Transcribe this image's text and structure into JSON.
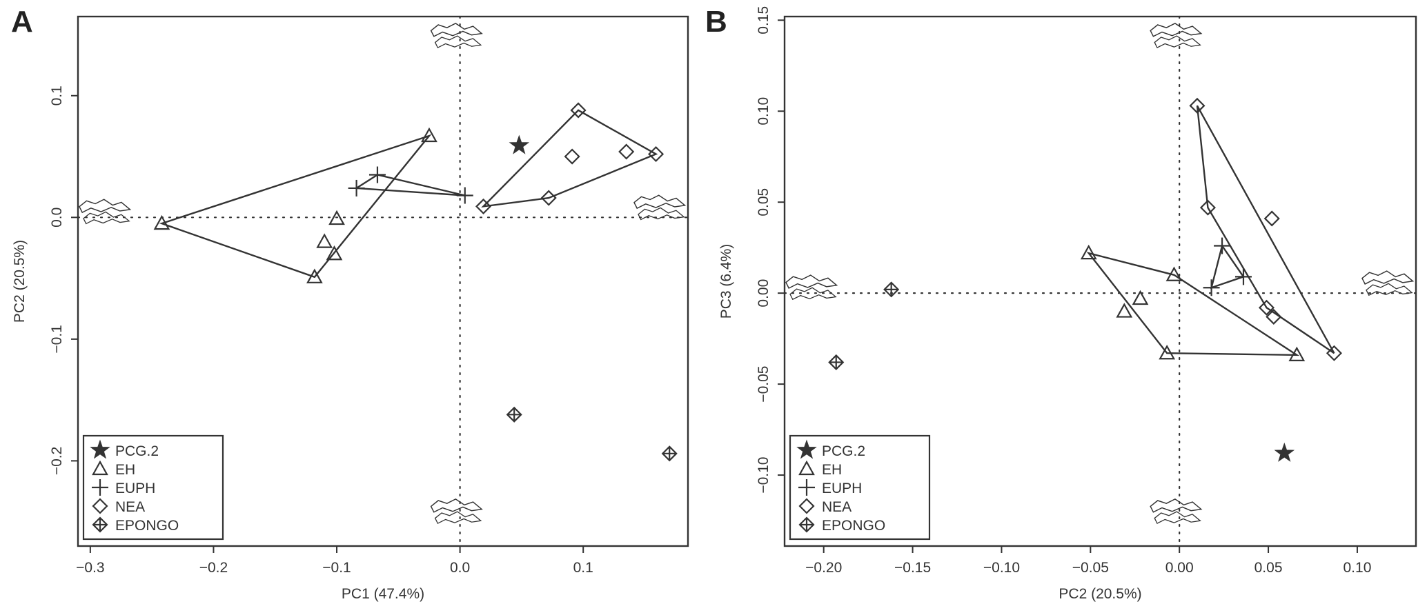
{
  "chart_data": [
    {
      "panel": "A",
      "type": "scatter",
      "xlabel": "PC1 (47.4%)",
      "ylabel": "PC2 (20.5%)",
      "xlim": [
        -0.31,
        0.185
      ],
      "ylim": [
        -0.27,
        0.165
      ],
      "xticks": [
        -0.3,
        -0.2,
        -0.1,
        0.0,
        0.1
      ],
      "yticks": [
        -0.2,
        -0.1,
        0.0,
        0.1
      ],
      "xtick_labels": [
        "−0.3",
        "−0.2",
        "−0.1",
        "0.0",
        "0.1"
      ],
      "ytick_labels": [
        "−0.2",
        "−0.1",
        "0.0",
        "0.1"
      ],
      "reference_lines": {
        "x": 0,
        "y": 0,
        "style": "dotted"
      },
      "legend_position": "bottom-left",
      "series": [
        {
          "name": "PCG.2",
          "marker": "star",
          "points": [
            [
              0.048,
              0.059
            ]
          ]
        },
        {
          "name": "EH",
          "marker": "triangle",
          "points": [
            [
              -0.242,
              -0.005
            ],
            [
              -0.025,
              0.067
            ],
            [
              -0.1,
              -0.001
            ],
            [
              -0.11,
              -0.02
            ],
            [
              -0.102,
              -0.03
            ],
            [
              -0.118,
              -0.049
            ]
          ],
          "hull": [
            [
              -0.242,
              -0.005
            ],
            [
              -0.025,
              0.067
            ],
            [
              -0.118,
              -0.049
            ]
          ]
        },
        {
          "name": "EUPH",
          "marker": "plus",
          "points": [
            [
              -0.084,
              0.024
            ],
            [
              -0.067,
              0.035
            ],
            [
              0.004,
              0.018
            ]
          ],
          "hull": [
            [
              -0.084,
              0.024
            ],
            [
              -0.067,
              0.035
            ],
            [
              0.004,
              0.018
            ]
          ]
        },
        {
          "name": "NEA",
          "marker": "diamond",
          "points": [
            [
              0.019,
              0.009
            ],
            [
              0.096,
              0.088
            ],
            [
              0.159,
              0.052
            ],
            [
              0.135,
              0.054
            ],
            [
              0.091,
              0.05
            ],
            [
              0.072,
              0.016
            ]
          ],
          "hull": [
            [
              0.019,
              0.009
            ],
            [
              0.096,
              0.088
            ],
            [
              0.159,
              0.052
            ],
            [
              0.072,
              0.016
            ]
          ]
        },
        {
          "name": "EPONGO",
          "marker": "diamond-plus",
          "points": [
            [
              0.044,
              -0.162
            ],
            [
              0.17,
              -0.194
            ]
          ]
        }
      ]
    },
    {
      "panel": "B",
      "type": "scatter",
      "xlabel": "PC2 (20.5%)",
      "ylabel": "PC3 (6.4%)",
      "xlim": [
        -0.222,
        0.133
      ],
      "ylim": [
        -0.139,
        0.152
      ],
      "xticks": [
        -0.2,
        -0.15,
        -0.1,
        -0.05,
        0.0,
        0.05,
        0.1
      ],
      "yticks": [
        -0.1,
        -0.05,
        0.0,
        0.05,
        0.1,
        0.15
      ],
      "xtick_labels": [
        "−0.20",
        "−0.15",
        "−0.10",
        "−0.05",
        "0.00",
        "0.05",
        "0.10"
      ],
      "ytick_labels": [
        "−0.10",
        "−0.05",
        "0.00",
        "0.05",
        "0.10",
        "0.15"
      ],
      "reference_lines": {
        "x": 0,
        "y": 0,
        "style": "dotted"
      },
      "legend_position": "bottom-left",
      "series": [
        {
          "name": "PCG.2",
          "marker": "star",
          "points": [
            [
              0.059,
              -0.088
            ]
          ]
        },
        {
          "name": "EH",
          "marker": "triangle",
          "points": [
            [
              -0.051,
              0.022
            ],
            [
              -0.003,
              0.01
            ],
            [
              -0.022,
              -0.003
            ],
            [
              -0.031,
              -0.01
            ],
            [
              -0.007,
              -0.033
            ],
            [
              0.066,
              -0.034
            ]
          ],
          "hull": [
            [
              -0.051,
              0.022
            ],
            [
              -0.007,
              -0.033
            ],
            [
              0.066,
              -0.034
            ],
            [
              -0.003,
              0.01
            ]
          ]
        },
        {
          "name": "EUPH",
          "marker": "plus",
          "points": [
            [
              0.024,
              0.026
            ],
            [
              0.036,
              0.009
            ],
            [
              0.018,
              0.003
            ]
          ],
          "hull": [
            [
              0.024,
              0.026
            ],
            [
              0.036,
              0.009
            ],
            [
              0.018,
              0.003
            ]
          ]
        },
        {
          "name": "NEA",
          "marker": "diamond",
          "points": [
            [
              0.01,
              0.103
            ],
            [
              0.016,
              0.047
            ],
            [
              0.052,
              0.041
            ],
            [
              0.049,
              -0.008
            ],
            [
              0.053,
              -0.013
            ],
            [
              0.087,
              -0.033
            ]
          ],
          "hull": [
            [
              0.01,
              0.103
            ],
            [
              0.087,
              -0.033
            ],
            [
              0.049,
              -0.008
            ],
            [
              0.016,
              0.047
            ]
          ]
        },
        {
          "name": "EPONGO",
          "marker": "diamond-plus",
          "points": [
            [
              -0.162,
              0.002
            ],
            [
              -0.193,
              -0.038
            ]
          ]
        }
      ]
    }
  ]
}
